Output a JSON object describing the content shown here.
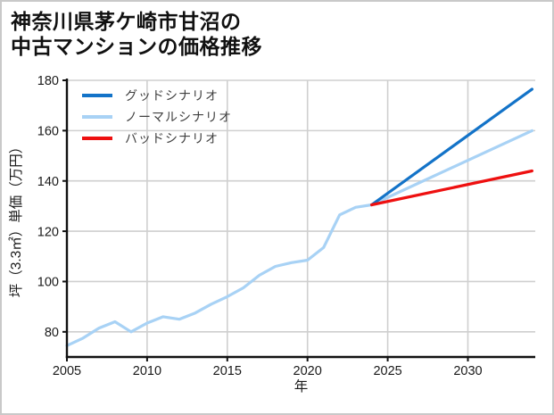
{
  "title": {
    "line1": "神奈川県茅ケ崎市甘沼の",
    "line2": "中古マンションの価格推移"
  },
  "frame": {
    "border_color": "#c9c9c9",
    "background": "#ffffff"
  },
  "chart_data": {
    "type": "line",
    "title": "神奈川県茅ケ崎市甘沼の中古マンションの価格推移",
    "xlabel": "年",
    "ylabel": "坪（3.3㎡）単価（万円）",
    "xlim": [
      2005,
      2034.2
    ],
    "ylim": [
      70,
      180
    ],
    "x_ticks": [
      2005,
      2010,
      2015,
      2020,
      2025,
      2030
    ],
    "y_ticks": [
      80,
      100,
      120,
      140,
      160,
      180
    ],
    "grid": true,
    "legend_position": "upper-left",
    "colors": {
      "grid": "#cfcfcf",
      "axis": "#111111",
      "tick_label": "#1a1a1a",
      "legend_text": "#404040"
    },
    "series": [
      {
        "name": "グッドシナリオ",
        "id": "good-scenario",
        "color": "#1373c8",
        "width": 3.2,
        "zorder": 3,
        "x": [
          2024,
          2034
        ],
        "y": [
          130.5,
          176.5
        ]
      },
      {
        "name": "ノーマルシナリオ",
        "id": "normal-scenario",
        "color": "#a8d2f5",
        "width": 3.2,
        "zorder": 2,
        "x": [
          2005,
          2006,
          2007,
          2008,
          2009,
          2010,
          2011,
          2012,
          2013,
          2014,
          2015,
          2016,
          2017,
          2018,
          2019,
          2020,
          2021,
          2022,
          2023,
          2024,
          2034
        ],
        "y": [
          74.5,
          77.5,
          81.5,
          84,
          80,
          83.5,
          86,
          85,
          87.5,
          91,
          94,
          97.5,
          102.5,
          106,
          107.5,
          108.5,
          113.5,
          126.5,
          129.5,
          130.5,
          160
        ]
      },
      {
        "name": "バッドシナリオ",
        "id": "bad-scenario",
        "color": "#ee1010",
        "width": 3.2,
        "zorder": 4,
        "x": [
          2024,
          2034
        ],
        "y": [
          130.5,
          144
        ]
      }
    ]
  }
}
